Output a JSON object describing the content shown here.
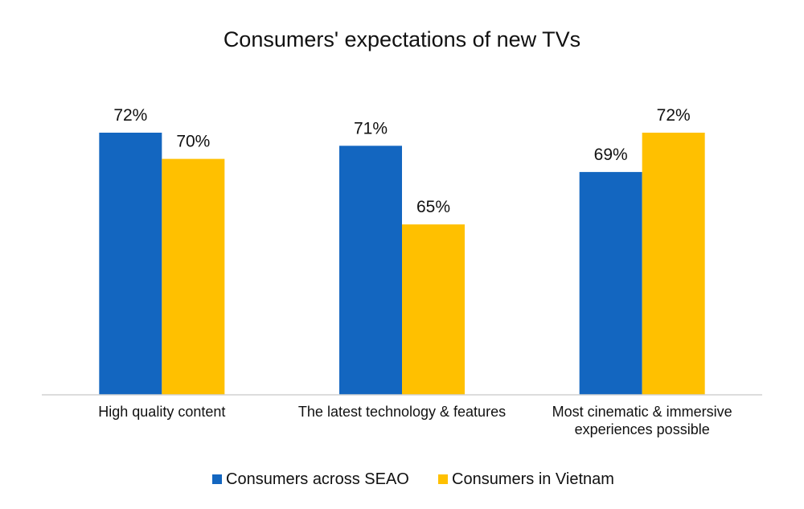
{
  "chart_data": {
    "type": "bar",
    "title": "Consumers' expectations of new TVs",
    "categories": [
      [
        "High quality content"
      ],
      [
        "The latest technology & features"
      ],
      [
        "Most cinematic & immersive",
        "experiences possible"
      ]
    ],
    "series": [
      {
        "name": "Consumers across SEAO",
        "color": "#1366C0",
        "values": [
          72,
          71,
          69
        ],
        "labels": [
          "72%",
          "71%",
          "69%"
        ]
      },
      {
        "name": "Consumers in Vietnam",
        "color": "#FFC000",
        "values": [
          70,
          65,
          72
        ],
        "labels": [
          "70%",
          "65%",
          "72%"
        ]
      }
    ],
    "ylim": [
      52,
      72
    ],
    "grid": false,
    "legend_position": "bottom"
  }
}
